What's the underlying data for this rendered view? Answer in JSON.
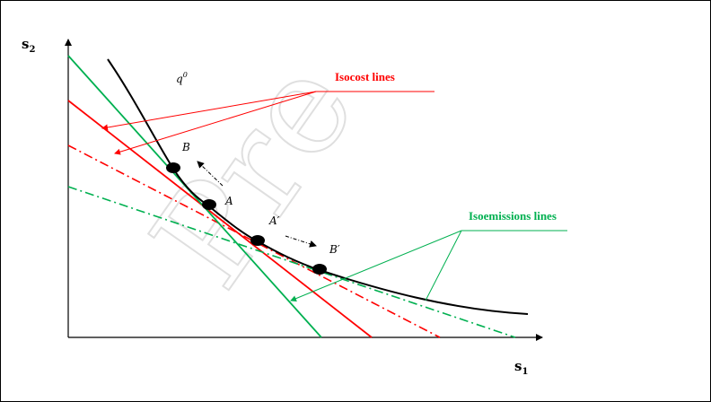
{
  "colors": {
    "isocost": "#ff0000",
    "isoemission": "#00b050",
    "isoquant": "#000000",
    "axis": "#000000"
  },
  "axes": {
    "y_label_main": "s",
    "y_label_sub": "2",
    "x_label_main": "s",
    "x_label_sub": "1"
  },
  "labels": {
    "isoquant": "q",
    "isoquant_sup": "0",
    "isocost": "Isocost lines",
    "isoemission": "Isoemissions lines"
  },
  "points": {
    "A": "A",
    "B": "B",
    "A_prime": "A′",
    "B_prime": "B′"
  },
  "watermark": "Pre"
}
